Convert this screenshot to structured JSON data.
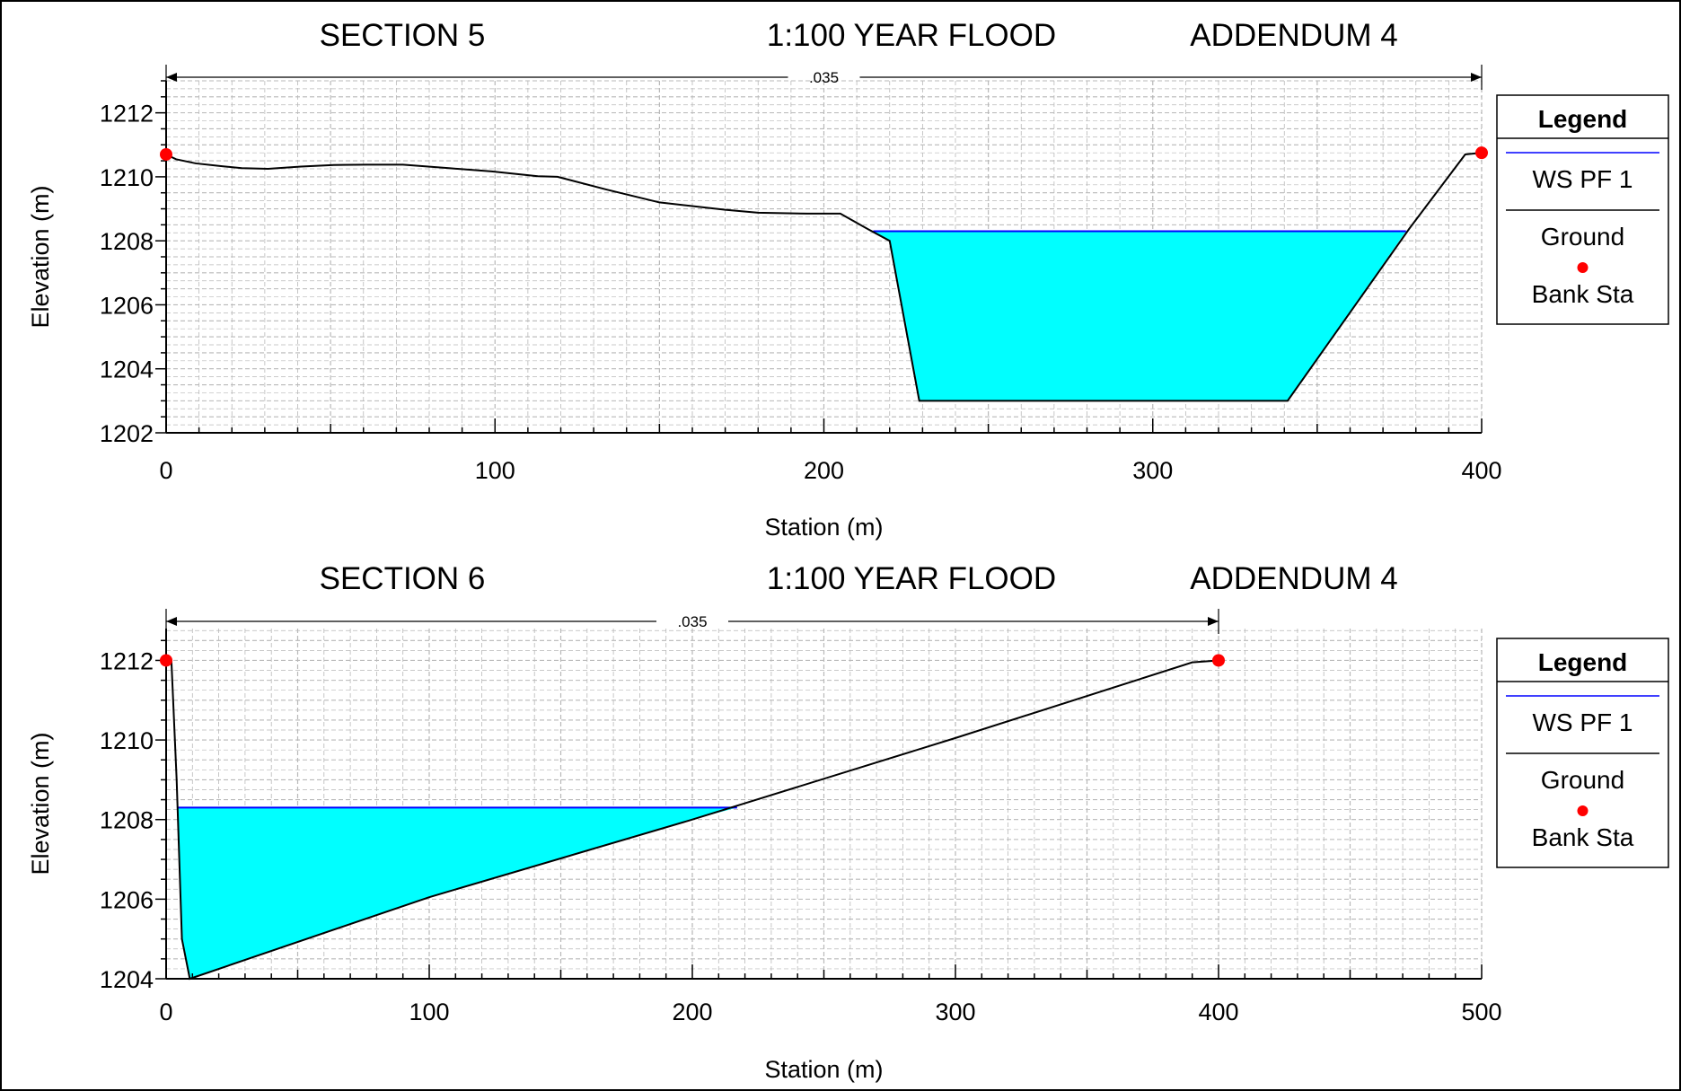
{
  "colors": {
    "water_fill": "#00ffff",
    "water_surface": "#0000ff",
    "ground": "#000000",
    "bank_station": "#ff0000",
    "grid": "#b8b8b8"
  },
  "legend": {
    "title": "Legend",
    "items": [
      "WS PF 1",
      "Ground",
      "Bank Sta"
    ]
  },
  "chart_data": [
    {
      "type": "area",
      "title_parts": [
        "SECTION 5",
        "1:100 YEAR FLOOD",
        "ADDENDUM  4"
      ],
      "xlabel": "Station (m)",
      "ylabel": "Elevation (m)",
      "xlim": [
        0,
        400
      ],
      "ylim": [
        1202,
        1213
      ],
      "xticks": [
        0,
        100,
        200,
        300,
        400
      ],
      "yticks": [
        1202,
        1204,
        1206,
        1208,
        1210,
        1212
      ],
      "grid": true,
      "legend_position": "right",
      "manning_n": ".035",
      "manning_span": [
        0,
        400
      ],
      "ground": {
        "x": [
          0,
          3,
          9,
          17,
          23,
          31,
          41,
          51,
          61,
          72,
          86,
          99,
          113,
          119,
          134,
          150,
          170,
          180,
          195,
          205,
          214,
          220,
          229,
          341,
          378,
          395,
          400
        ],
        "y": [
          1210.7,
          1210.55,
          1210.42,
          1210.33,
          1210.27,
          1210.25,
          1210.32,
          1210.37,
          1210.38,
          1210.38,
          1210.27,
          1210.17,
          1210.02,
          1210.0,
          1209.6,
          1209.2,
          1208.97,
          1208.88,
          1208.85,
          1208.85,
          1208.33,
          1208.0,
          1203.0,
          1203.0,
          1208.38,
          1210.7,
          1210.75
        ]
      },
      "water_surface": {
        "elevation": 1208.3,
        "x_left": 215,
        "x_right": 377
      },
      "bank_stations": [
        {
          "x": 0,
          "y": 1210.7
        },
        {
          "x": 400,
          "y": 1210.75
        }
      ]
    },
    {
      "type": "area",
      "title_parts": [
        "SECTION 6",
        "1:100 YEAR FLOOD",
        "ADDENDUM  4"
      ],
      "xlabel": "Station (m)",
      "ylabel": "Elevation (m)",
      "xlim": [
        0,
        500
      ],
      "ylim": [
        1204,
        1212.8
      ],
      "xticks": [
        0,
        100,
        200,
        300,
        400,
        500
      ],
      "yticks": [
        1204,
        1206,
        1208,
        1210,
        1212
      ],
      "grid": true,
      "legend_position": "right",
      "manning_n": ".035",
      "manning_span": [
        0,
        400
      ],
      "ground": {
        "x": [
          0,
          2,
          4,
          6,
          9,
          100,
          200,
          300,
          390,
          400
        ],
        "y": [
          1212.0,
          1212.0,
          1209.0,
          1205.0,
          1204.0,
          1206.05,
          1208.0,
          1210.05,
          1211.95,
          1212.0
        ]
      },
      "water_surface": {
        "elevation": 1208.3,
        "x_left": 4.6,
        "x_right": 217
      },
      "bank_stations": [
        {
          "x": 0,
          "y": 1212.0
        },
        {
          "x": 400,
          "y": 1212.0
        }
      ]
    }
  ]
}
